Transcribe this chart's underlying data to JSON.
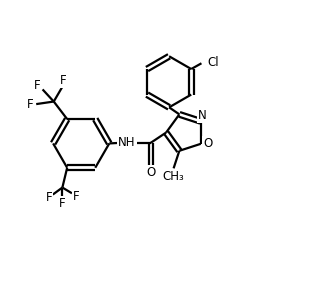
{
  "bg_color": "#ffffff",
  "line_color": "#000000",
  "line_width": 1.6,
  "font_size": 8.5,
  "figsize": [
    3.22,
    3.06
  ],
  "dpi": 100,
  "xlim": [
    0,
    10
  ],
  "ylim": [
    0,
    9.5
  ]
}
